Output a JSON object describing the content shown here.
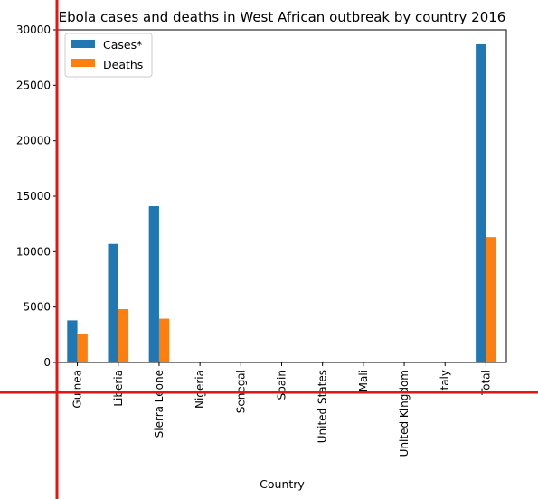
{
  "chart_data": {
    "type": "bar",
    "title": "Ebola cases and deaths in West African outbreak by country 2016",
    "xlabel": "Country",
    "ylabel": "",
    "categories": [
      "Guinea",
      "Liberia",
      "Sierra Leone",
      "Nigeria",
      "Senegal",
      "Spain",
      "United States",
      "Mali",
      "United Kingdom",
      "Italy",
      "Total"
    ],
    "series": [
      {
        "name": "Cases*",
        "color": "#1f77b4",
        "values": [
          3800,
          10700,
          14100,
          20,
          1,
          1,
          4,
          8,
          1,
          1,
          28700
        ]
      },
      {
        "name": "Deaths",
        "color": "#ff7f0e",
        "values": [
          2540,
          4810,
          3950,
          8,
          0,
          0,
          1,
          6,
          0,
          0,
          11320
        ]
      }
    ],
    "ylim": [
      0,
      30000
    ],
    "yticks": [
      "0",
      "5000",
      "10000",
      "15000",
      "20000",
      "25000",
      "30000"
    ],
    "grid": false,
    "legend_position": "top-left"
  },
  "overlay": {
    "crosshair_color": "#e8140f"
  }
}
